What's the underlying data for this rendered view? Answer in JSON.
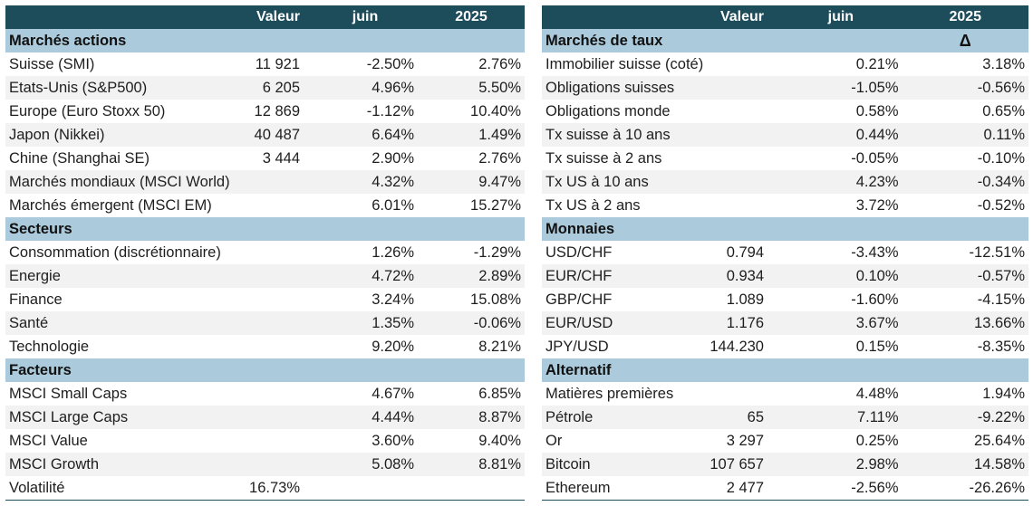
{
  "left": {
    "headers": [
      "",
      "Valeur",
      "juin",
      "2025"
    ],
    "sections": [
      {
        "title": "Marchés actions",
        "rows": [
          {
            "name": "Suisse (SMI)",
            "valeur": "11 921",
            "juin": "-2.50%",
            "y2025": "2.76%"
          },
          {
            "name": "Etats-Unis (S&P500)",
            "valeur": "6 205",
            "juin": "4.96%",
            "y2025": "5.50%"
          },
          {
            "name": "Europe (Euro Stoxx 50)",
            "valeur": "12 869",
            "juin": "-1.12%",
            "y2025": "10.40%"
          },
          {
            "name": "Japon (Nikkei)",
            "valeur": "40 487",
            "juin": "6.64%",
            "y2025": "1.49%"
          },
          {
            "name": "Chine (Shanghai SE)",
            "valeur": "3 444",
            "juin": "2.90%",
            "y2025": "2.76%"
          },
          {
            "name": "Marchés mondiaux (MSCI World)",
            "valeur": "",
            "juin": "4.32%",
            "y2025": "9.47%"
          },
          {
            "name": "Marchés émergent (MSCI EM)",
            "valeur": "",
            "juin": "6.01%",
            "y2025": "15.27%"
          }
        ]
      },
      {
        "title": "Secteurs",
        "rows": [
          {
            "name": "Consommation (discrétionnaire)",
            "valeur": "",
            "juin": "1.26%",
            "y2025": "-1.29%"
          },
          {
            "name": "Energie",
            "valeur": "",
            "juin": "4.72%",
            "y2025": "2.89%"
          },
          {
            "name": "Finance",
            "valeur": "",
            "juin": "3.24%",
            "y2025": "15.08%"
          },
          {
            "name": "Santé",
            "valeur": "",
            "juin": "1.35%",
            "y2025": "-0.06%"
          },
          {
            "name": "Technologie",
            "valeur": "",
            "juin": "9.20%",
            "y2025": "8.21%"
          }
        ]
      },
      {
        "title": "Facteurs",
        "rows": [
          {
            "name": "MSCI Small Caps",
            "valeur": "",
            "juin": "4.67%",
            "y2025": "6.85%"
          },
          {
            "name": "MSCI Large Caps",
            "valeur": "",
            "juin": "4.44%",
            "y2025": "8.87%"
          },
          {
            "name": "MSCI Value",
            "valeur": "",
            "juin": "3.60%",
            "y2025": "9.40%"
          },
          {
            "name": "MSCI Growth",
            "valeur": "",
            "juin": "5.08%",
            "y2025": "8.81%"
          },
          {
            "name": "Volatilité",
            "valeur": "16.73%",
            "juin": "",
            "y2025": ""
          }
        ]
      }
    ]
  },
  "right": {
    "headers": [
      "",
      "Valeur",
      "juin",
      "2025"
    ],
    "sections": [
      {
        "title": "Marchés de taux",
        "delta": "Δ",
        "rows": [
          {
            "name": "Immobilier suisse (coté)",
            "valeur": "",
            "juin": "0.21%",
            "y2025": "3.18%"
          },
          {
            "name": "Obligations suisses",
            "valeur": "",
            "juin": "-1.05%",
            "y2025": "-0.56%"
          },
          {
            "name": "Obligations monde",
            "valeur": "",
            "juin": "0.58%",
            "y2025": "0.65%"
          },
          {
            "name": "Tx suisse à 10 ans",
            "valeur": "",
            "juin": "0.44%",
            "y2025": "0.11%"
          },
          {
            "name": "Tx suisse à 2 ans",
            "valeur": "",
            "juin": "-0.05%",
            "y2025": "-0.10%"
          },
          {
            "name": "Tx US à 10 ans",
            "valeur": "",
            "juin": "4.23%",
            "y2025": "-0.34%"
          },
          {
            "name": "Tx US à 2 ans",
            "valeur": "",
            "juin": "3.72%",
            "y2025": "-0.52%"
          }
        ]
      },
      {
        "title": "Monnaies",
        "rows": [
          {
            "name": "USD/CHF",
            "valeur": "0.794",
            "juin": "-3.43%",
            "y2025": "-12.51%"
          },
          {
            "name": "EUR/CHF",
            "valeur": "0.934",
            "juin": "0.10%",
            "y2025": "-0.57%"
          },
          {
            "name": "GBP/CHF",
            "valeur": "1.089",
            "juin": "-1.60%",
            "y2025": "-4.15%"
          },
          {
            "name": "EUR/USD",
            "valeur": "1.176",
            "juin": "3.67%",
            "y2025": "13.66%"
          },
          {
            "name": "JPY/USD",
            "valeur": "144.230",
            "juin": "0.15%",
            "y2025": "-8.35%"
          }
        ]
      },
      {
        "title": "Alternatif",
        "rows": [
          {
            "name": "Matières premières",
            "valeur": "",
            "juin": "4.48%",
            "y2025": "1.94%"
          },
          {
            "name": "Pétrole",
            "valeur": "65",
            "juin": "7.11%",
            "y2025": "-9.22%"
          },
          {
            "name": "Or",
            "valeur": "3 297",
            "juin": "0.25%",
            "y2025": "25.64%"
          },
          {
            "name": "Bitcoin",
            "valeur": "107 657",
            "juin": "2.98%",
            "y2025": "14.58%"
          },
          {
            "name": "Ethereum",
            "valeur": "2 477",
            "juin": "-2.56%",
            "y2025": "-26.26%"
          }
        ]
      }
    ]
  }
}
